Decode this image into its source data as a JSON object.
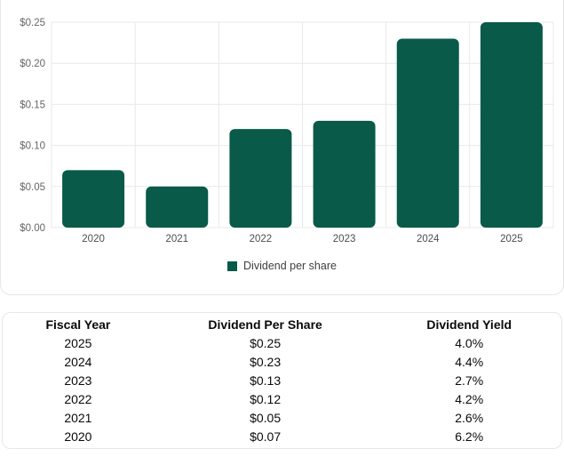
{
  "chart_data": {
    "type": "bar",
    "categories": [
      "2020",
      "2021",
      "2022",
      "2023",
      "2024",
      "2025"
    ],
    "series": [
      {
        "name": "Dividend per share",
        "values": [
          0.07,
          0.05,
          0.12,
          0.13,
          0.23,
          0.25
        ]
      }
    ],
    "xlabel": "",
    "ylabel": "",
    "ylim": [
      0,
      0.25
    ],
    "yticks": {
      "values": [
        0,
        0.05,
        0.1,
        0.15,
        0.2,
        0.25
      ],
      "labels": [
        "$0.00",
        "$0.05",
        "$0.10",
        "$0.15",
        "$0.20",
        "$0.25"
      ]
    },
    "grid": "both",
    "legend_position": "bottom"
  },
  "chart": {
    "legend_label": "Dividend per share",
    "colors": {
      "bar": "#095a48",
      "grid": "#e9e9e9",
      "y_tick_label": "#666666",
      "x_tick_label": "#4d4d4d",
      "legend_text": "#3f3f3f",
      "card_border": "#e7e7e7"
    }
  },
  "table": {
    "headers": [
      "Fiscal Year",
      "Dividend Per Share",
      "Dividend Yield"
    ],
    "rows": [
      [
        "2025",
        "$0.25",
        "4.0%"
      ],
      [
        "2024",
        "$0.23",
        "4.4%"
      ],
      [
        "2023",
        "$0.13",
        "2.7%"
      ],
      [
        "2022",
        "$0.12",
        "4.2%"
      ],
      [
        "2021",
        "$0.05",
        "2.6%"
      ],
      [
        "2020",
        "$0.07",
        "6.2%"
      ]
    ]
  }
}
